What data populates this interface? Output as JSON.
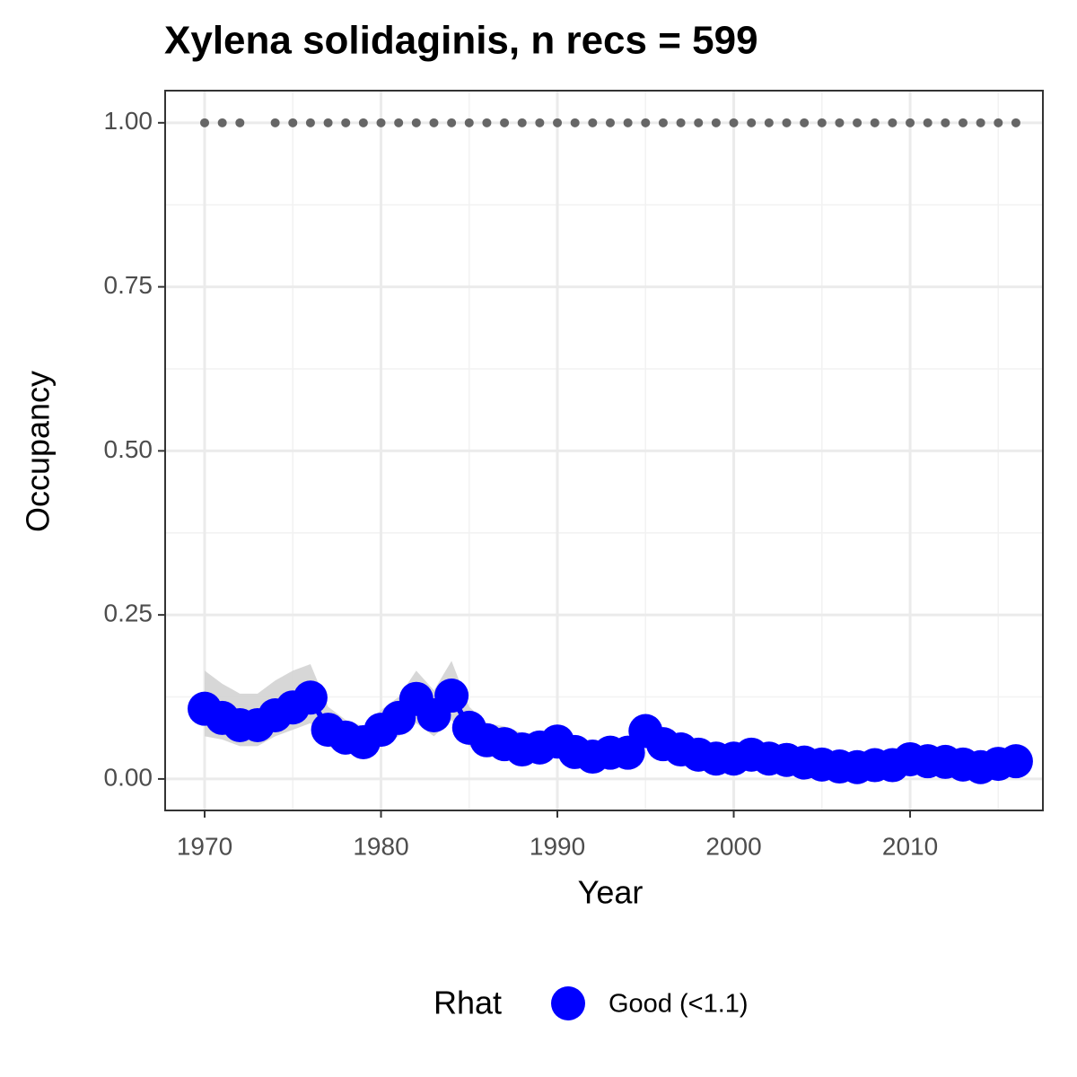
{
  "chart_data": {
    "type": "line",
    "title": "Xylena solidaginis, n recs = 599",
    "x_label": "Year",
    "y_label": "Occupancy",
    "x": [
      1970,
      1971,
      1972,
      1973,
      1974,
      1975,
      1976,
      1977,
      1978,
      1979,
      1980,
      1981,
      1982,
      1983,
      1984,
      1985,
      1986,
      1987,
      1988,
      1989,
      1990,
      1991,
      1992,
      1993,
      1994,
      1995,
      1996,
      1997,
      1998,
      1999,
      2000,
      2001,
      2002,
      2003,
      2004,
      2005,
      2006,
      2007,
      2008,
      2009,
      2010,
      2011,
      2012,
      2013,
      2014,
      2015,
      2016
    ],
    "series": [
      {
        "name": "Good (<1.1)",
        "color": "#0000ff",
        "values": [
          0.107,
          0.093,
          0.082,
          0.082,
          0.097,
          0.109,
          0.124,
          0.075,
          0.063,
          0.056,
          0.075,
          0.093,
          0.122,
          0.097,
          0.127,
          0.078,
          0.059,
          0.053,
          0.045,
          0.048,
          0.057,
          0.041,
          0.034,
          0.04,
          0.04,
          0.073,
          0.053,
          0.045,
          0.037,
          0.031,
          0.031,
          0.037,
          0.031,
          0.029,
          0.025,
          0.022,
          0.019,
          0.018,
          0.021,
          0.021,
          0.03,
          0.027,
          0.026,
          0.022,
          0.018,
          0.023,
          0.027
        ],
        "lower": [
          0.065,
          0.06,
          0.05,
          0.05,
          0.065,
          0.075,
          0.085,
          0.05,
          0.04,
          0.035,
          0.05,
          0.065,
          0.085,
          0.065,
          0.09,
          0.05,
          0.038,
          0.033,
          0.028,
          0.03,
          0.037,
          0.025,
          0.02,
          0.025,
          0.025,
          0.05,
          0.035,
          0.028,
          0.023,
          0.019,
          0.019,
          0.024,
          0.019,
          0.018,
          0.015,
          0.013,
          0.011,
          0.01,
          0.012,
          0.012,
          0.019,
          0.017,
          0.016,
          0.013,
          0.01,
          0.014,
          0.017
        ],
        "upper": [
          0.165,
          0.145,
          0.13,
          0.13,
          0.15,
          0.165,
          0.175,
          0.11,
          0.09,
          0.08,
          0.105,
          0.125,
          0.165,
          0.135,
          0.18,
          0.11,
          0.085,
          0.08,
          0.07,
          0.07,
          0.08,
          0.06,
          0.05,
          0.06,
          0.06,
          0.095,
          0.075,
          0.065,
          0.055,
          0.047,
          0.047,
          0.053,
          0.046,
          0.043,
          0.038,
          0.034,
          0.03,
          0.029,
          0.032,
          0.032,
          0.043,
          0.04,
          0.039,
          0.034,
          0.029,
          0.036,
          0.04
        ]
      }
    ],
    "records": {
      "color": "#666666",
      "values": [
        1,
        1,
        1,
        null,
        1,
        1,
        1,
        1,
        1,
        1,
        1,
        1,
        1,
        1,
        1,
        1,
        1,
        1,
        1,
        1,
        1,
        1,
        1,
        1,
        1,
        1,
        1,
        1,
        1,
        1,
        1,
        1,
        1,
        1,
        1,
        1,
        1,
        1,
        1,
        1,
        1,
        1,
        1,
        1,
        1,
        1,
        1
      ]
    },
    "ribbon_color": "#d3d3d3",
    "legend_title": "Rhat",
    "legend": "bottom",
    "xlim": [
      1967.76,
      2017.53
    ],
    "ylim": [
      -0.048,
      1.049
    ],
    "xticks": [
      1970,
      1980,
      1990,
      2000,
      2010
    ],
    "yticks": [
      {
        "value": 0,
        "label": "0.00"
      },
      {
        "value": 0.25,
        "label": "0.25"
      },
      {
        "value": 0.5,
        "label": "0.50"
      },
      {
        "value": 0.75,
        "label": "0.75"
      },
      {
        "value": 1,
        "label": "1.00"
      }
    ],
    "grid": true
  }
}
